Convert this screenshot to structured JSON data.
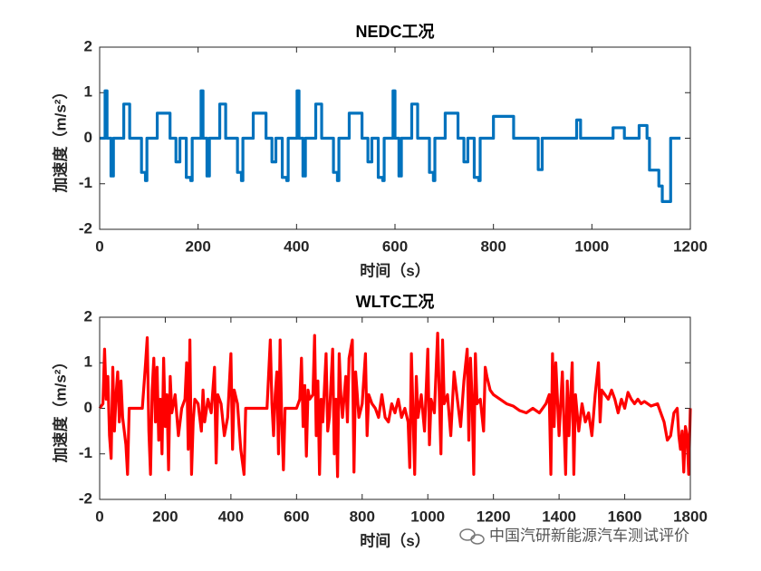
{
  "chart_data": [
    {
      "type": "line",
      "title": "NEDC工况",
      "xlabel": "时间（s）",
      "ylabel": "加速度（m/s²）",
      "color": "#0072bd",
      "xlim": [
        0,
        1200
      ],
      "xticks": [
        0,
        200,
        400,
        600,
        800,
        1000,
        1200
      ],
      "ylim": [
        -2,
        2
      ],
      "yticks": [
        -2,
        -1,
        0,
        1,
        2
      ],
      "grid": false,
      "x": [
        0,
        11,
        11,
        15,
        15,
        23,
        23,
        28,
        28,
        49,
        49,
        61,
        61,
        85,
        85,
        93,
        93,
        96,
        96,
        117,
        117,
        143,
        143,
        155,
        155,
        163,
        163,
        176,
        176,
        185,
        185,
        188,
        188,
        195,
        195,
        206,
        206,
        210,
        210,
        218,
        218,
        223,
        223,
        244,
        244,
        256,
        256,
        280,
        280,
        288,
        288,
        291,
        291,
        312,
        312,
        338,
        338,
        350,
        350,
        358,
        358,
        371,
        371,
        380,
        380,
        383,
        383,
        390,
        390,
        401,
        401,
        405,
        405,
        413,
        413,
        418,
        418,
        439,
        439,
        451,
        451,
        475,
        475,
        483,
        483,
        486,
        486,
        507,
        507,
        533,
        533,
        545,
        545,
        553,
        553,
        566,
        566,
        575,
        575,
        578,
        578,
        585,
        585,
        596,
        596,
        600,
        600,
        608,
        608,
        613,
        613,
        634,
        634,
        646,
        646,
        670,
        670,
        678,
        678,
        681,
        681,
        702,
        702,
        728,
        728,
        740,
        740,
        748,
        748,
        761,
        761,
        770,
        770,
        773,
        773,
        780,
        780,
        800,
        800,
        841,
        841,
        891,
        891,
        899,
        899,
        969,
        969,
        977,
        977,
        1043,
        1043,
        1066,
        1066,
        1096,
        1096,
        1112,
        1112,
        1117,
        1117,
        1136,
        1136,
        1143,
        1143,
        1160,
        1160,
        1180
      ],
      "values": [
        0,
        0,
        1.04,
        1.04,
        0,
        0,
        -0.83,
        -0.83,
        0,
        0,
        0.75,
        0.75,
        0,
        0,
        -0.75,
        -0.75,
        -0.93,
        -0.93,
        0,
        0,
        0.55,
        0.55,
        0,
        0,
        -0.52,
        -0.52,
        0,
        0,
        -0.86,
        -0.86,
        -0.93,
        -0.93,
        0,
        0,
        0,
        0,
        1.04,
        1.04,
        0,
        0,
        -0.83,
        -0.83,
        0,
        0,
        0.75,
        0.75,
        0,
        0,
        -0.75,
        -0.75,
        -0.93,
        -0.93,
        0,
        0,
        0.55,
        0.55,
        0,
        0,
        -0.52,
        -0.52,
        0,
        0,
        -0.86,
        -0.86,
        -0.93,
        -0.93,
        0,
        0,
        0,
        0,
        1.04,
        1.04,
        0,
        0,
        -0.83,
        -0.83,
        0,
        0,
        0.75,
        0.75,
        0,
        0,
        -0.75,
        -0.75,
        -0.93,
        -0.93,
        0,
        0,
        0.55,
        0.55,
        0,
        0,
        -0.52,
        -0.52,
        0,
        0,
        -0.86,
        -0.86,
        -0.93,
        -0.93,
        0,
        0,
        0,
        0,
        1.04,
        1.04,
        0,
        0,
        -0.83,
        -0.83,
        0,
        0,
        0.75,
        0.75,
        0,
        0,
        -0.75,
        -0.75,
        -0.93,
        -0.93,
        0,
        0,
        0.55,
        0.55,
        0,
        0,
        -0.52,
        -0.52,
        0,
        0,
        -0.86,
        -0.86,
        -0.93,
        -0.93,
        0,
        0,
        0,
        0,
        0.48,
        0.48,
        0,
        0,
        -0.69,
        -0.69,
        0,
        0,
        0.4,
        0.4,
        0,
        0,
        0.23,
        0.23,
        0,
        0,
        0.28,
        0.28,
        0,
        0,
        -0.7,
        -0.7,
        -1.05,
        -1.05,
        -1.39,
        -1.39,
        0,
        0
      ]
    },
    {
      "type": "line",
      "title": "WLTC工况",
      "xlabel": "时间（s）",
      "ylabel": "加速度（m/s²）",
      "color": "#ff0000",
      "xlim": [
        0,
        1800
      ],
      "xticks": [
        0,
        200,
        400,
        600,
        800,
        1000,
        1200,
        1400,
        1600,
        1800
      ],
      "ylim": [
        -2,
        2
      ],
      "yticks": [
        -2,
        -1,
        0,
        1,
        2
      ],
      "grid": false,
      "x": [
        0,
        10,
        15,
        20,
        25,
        30,
        35,
        40,
        45,
        50,
        55,
        60,
        65,
        70,
        80,
        85,
        90,
        100,
        110,
        120,
        130,
        140,
        145,
        150,
        155,
        160,
        165,
        170,
        175,
        180,
        185,
        190,
        195,
        200,
        205,
        210,
        215,
        220,
        230,
        240,
        250,
        260,
        265,
        270,
        275,
        280,
        285,
        290,
        300,
        310,
        315,
        320,
        330,
        340,
        350,
        355,
        360,
        370,
        380,
        390,
        400,
        405,
        410,
        420,
        430,
        440,
        445,
        460,
        480,
        500,
        510,
        520,
        525,
        530,
        535,
        540,
        545,
        550,
        555,
        560,
        565,
        580,
        600,
        610,
        615,
        620,
        625,
        630,
        635,
        640,
        650,
        655,
        660,
        665,
        670,
        675,
        680,
        690,
        695,
        700,
        710,
        715,
        720,
        725,
        730,
        735,
        740,
        750,
        755,
        760,
        770,
        775,
        780,
        790,
        800,
        810,
        815,
        820,
        830,
        840,
        850,
        860,
        870,
        880,
        890,
        900,
        910,
        920,
        930,
        940,
        945,
        950,
        955,
        960,
        965,
        970,
        980,
        990,
        1000,
        1005,
        1010,
        1020,
        1030,
        1035,
        1040,
        1045,
        1050,
        1060,
        1070,
        1080,
        1090,
        1100,
        1110,
        1120,
        1125,
        1130,
        1135,
        1140,
        1145,
        1150,
        1160,
        1170,
        1175,
        1180,
        1190,
        1200,
        1220,
        1240,
        1260,
        1280,
        1300,
        1320,
        1340,
        1360,
        1370,
        1375,
        1380,
        1385,
        1390,
        1400,
        1410,
        1420,
        1425,
        1430,
        1440,
        1445,
        1450,
        1460,
        1470,
        1480,
        1490,
        1500,
        1510,
        1520,
        1525,
        1530,
        1540,
        1550,
        1560,
        1570,
        1580,
        1590,
        1600,
        1610,
        1620,
        1630,
        1640,
        1650,
        1660,
        1680,
        1700,
        1710,
        1720,
        1730,
        1740,
        1750,
        1760,
        1765,
        1770,
        1775,
        1780,
        1785,
        1790,
        1795,
        1800
      ],
      "values": [
        0,
        0.1,
        1.3,
        0.2,
        0.7,
        -0.6,
        -1.1,
        0.9,
        -0.5,
        0.3,
        0.8,
        -0.3,
        0.6,
        -0.2,
        -0.8,
        -1.45,
        0,
        0,
        0,
        0,
        0,
        1.0,
        1.55,
        -0.5,
        -1.45,
        0.4,
        1.1,
        -0.3,
        0.9,
        -0.7,
        0.2,
        -1.0,
        1.1,
        -0.4,
        0.3,
        -1.35,
        0.7,
        -0.1,
        0.3,
        -0.6,
        0,
        0.2,
        1.0,
        -0.9,
        1.5,
        -1.45,
        -0.3,
        0.2,
        0.1,
        -0.5,
        0.4,
        -0.3,
        0.2,
        -0.1,
        0.9,
        -1.2,
        0.3,
        0.1,
        -0.6,
        -0.2,
        1.2,
        -0.9,
        0.4,
        0.1,
        -0.9,
        -1.45,
        0,
        0,
        0,
        0,
        0,
        1.5,
        0.1,
        -0.6,
        0.3,
        0.8,
        -1.0,
        1.5,
        -0.3,
        -1.35,
        0,
        0,
        0,
        0.2,
        1.1,
        -0.4,
        0.5,
        -1.05,
        0.4,
        0.2,
        0.3,
        1.6,
        -0.6,
        0.6,
        -1.45,
        0.2,
        -0.3,
        1.2,
        -0.5,
        -0.2,
        1.3,
        -1.0,
        0.2,
        -1.5,
        1.2,
        0.3,
        -0.2,
        0.7,
        -0.3,
        1.1,
        1.5,
        -1.4,
        0.8,
        -0.2,
        0.1,
        1.2,
        -0.6,
        0.3,
        0.1,
        0,
        -0.2,
        0.3,
        -0.2,
        -0.3,
        0.1,
        -0.1,
        0.2,
        -0.2,
        0,
        -0.3,
        -1.3,
        1.2,
        -0.1,
        -1.45,
        0.7,
        -0.2,
        0.3,
        -0.5,
        1.3,
        -0.8,
        0.2,
        -0.1,
        1.65,
        0.3,
        -1.0,
        1.5,
        0.1,
        0.3,
        -0.6,
        0.8,
        0.2,
        -0.4,
        0.6,
        1.3,
        -0.7,
        1.1,
        0.2,
        -1.45,
        1.2,
        0.1,
        0.2,
        -0.5,
        0.9,
        0.7,
        0.4,
        0.3,
        0.2,
        0.1,
        0.05,
        -0.05,
        -0.1,
        0,
        -0.1,
        0.1,
        0.3,
        -1.45,
        1.2,
        -0.4,
        1.0,
        -0.6,
        0.8,
        -1.45,
        0.6,
        -0.6,
        1.0,
        -1.45,
        0.3,
        -0.5,
        0.1,
        -0.3,
        -0.1,
        -0.6,
        0.3,
        1.0,
        -0.3,
        0.4,
        0.3,
        0.2,
        0.4,
        0.2,
        -0.1,
        0.2,
        0,
        0.35,
        0.2,
        0.1,
        0.2,
        0.1,
        0.15,
        0.05,
        0.1,
        -0.1,
        -0.3,
        -0.7,
        -0.6,
        -0.1,
        0,
        -0.6,
        -0.9,
        -0.5,
        -1.4,
        -0.4,
        -0.6,
        -1.45,
        0
      ]
    }
  ],
  "watermark": "中国汽研新能源汽车测试评价"
}
